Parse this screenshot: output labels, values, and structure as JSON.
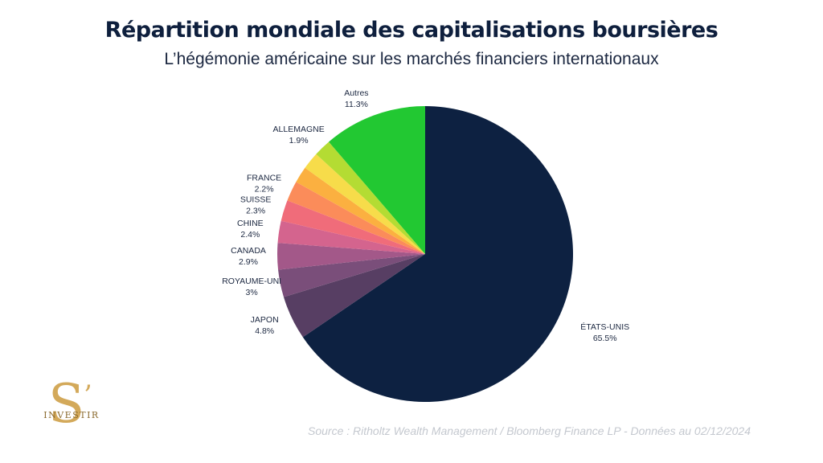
{
  "header": {
    "title": "Répartition mondiale des capitalisations boursières",
    "subtitle": "L’hégémonie américaine sur les marchés financiers internationaux"
  },
  "footer": {
    "source": "Source : Ritholtz Wealth Management / Bloomberg Finance LP - Données au 02/12/2024"
  },
  "logo": {
    "letter": "S",
    "apostrophe": "’",
    "word": "INVESTIR"
  },
  "chart_data": {
    "type": "pie",
    "title": "Répartition mondiale des capitalisations boursières",
    "subtitle": "L’hégémonie américaine sur les marchés financiers internationaux",
    "start_angle_deg": 0,
    "direction": "clockwise",
    "slices": [
      {
        "label": "ÉTATS-UNIS",
        "value": 65.5,
        "value_label": "65.5%",
        "color": "#0d2141"
      },
      {
        "label": "JAPON",
        "value": 4.8,
        "value_label": "4.8%",
        "color": "#573e63"
      },
      {
        "label": "ROYAUME-UNI",
        "value": 3,
        "value_label": "3%",
        "color": "#7a4e7a"
      },
      {
        "label": "CANADA",
        "value": 2.9,
        "value_label": "2.9%",
        "color": "#a35889"
      },
      {
        "label": "CHINE",
        "value": 2.4,
        "value_label": "2.4%",
        "color": "#d4648e"
      },
      {
        "label": "SUISSE",
        "value": 2.3,
        "value_label": "2.3%",
        "color": "#f06c7a"
      },
      {
        "label": "FRANCE",
        "value": 2.2,
        "value_label": "2.2%",
        "color": "#fb8c5a"
      },
      {
        "label": "",
        "value": 1.8,
        "value_label": "",
        "color": "#fbb040"
      },
      {
        "label": "",
        "value": 1.9,
        "value_label": "",
        "color": "#f7dc4a"
      },
      {
        "label": "ALLEMAGNE",
        "value": 1.9,
        "value_label": "1.9%",
        "color": "#b4dc33"
      },
      {
        "label": "Autres",
        "value": 11.3,
        "value_label": "11.3%",
        "color": "#22c832"
      }
    ]
  }
}
